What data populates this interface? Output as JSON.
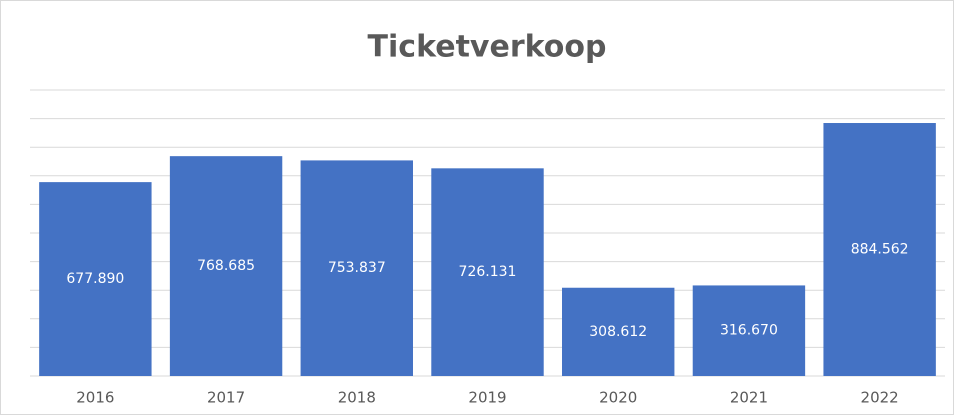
{
  "chart_data": {
    "type": "bar",
    "title": "Ticketverkoop",
    "categories": [
      "2016",
      "2017",
      "2018",
      "2019",
      "2020",
      "2021",
      "2022"
    ],
    "values": [
      677890,
      768685,
      753837,
      726131,
      308612,
      316670,
      884562
    ],
    "value_labels": [
      "677.890",
      "768.685",
      "753.837",
      "726.131",
      "308.612",
      "316.670",
      "884.562"
    ],
    "color": "#4472c4",
    "ylim": [
      0,
      1000000
    ],
    "yticks": [
      0,
      100000,
      200000,
      300000,
      400000,
      500000,
      600000,
      700000,
      800000,
      900000,
      1000000
    ],
    "grid": true
  }
}
